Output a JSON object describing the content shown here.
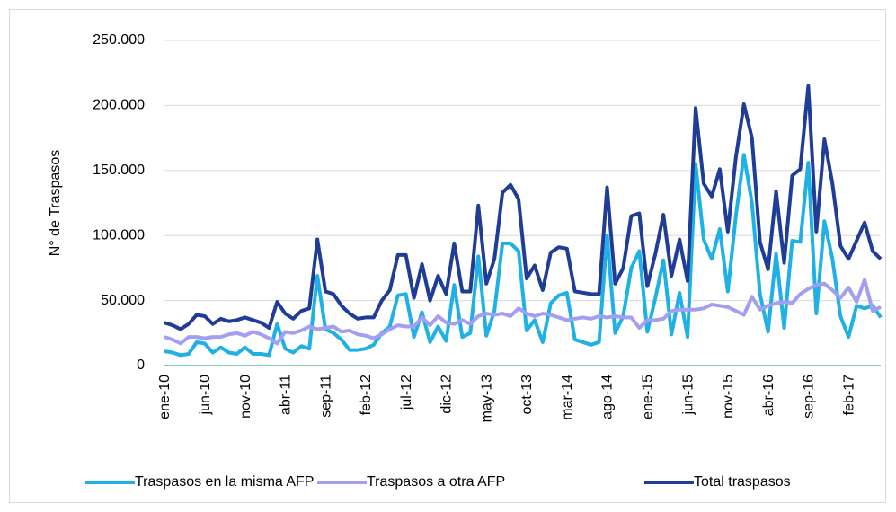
{
  "chart_data": {
    "type": "line",
    "y_label": "N° de Traspasos",
    "categories": [
      "ene-10",
      null,
      null,
      null,
      null,
      "jun-10",
      null,
      null,
      null,
      null,
      "nov-10",
      null,
      null,
      null,
      null,
      "abr-11",
      null,
      null,
      null,
      null,
      "sep-11",
      null,
      null,
      null,
      null,
      "feb-12",
      null,
      null,
      null,
      null,
      "jul-12",
      null,
      null,
      null,
      null,
      "dic-12",
      null,
      null,
      null,
      null,
      "may-13",
      null,
      null,
      null,
      null,
      "oct-13",
      null,
      null,
      null,
      null,
      "mar-14",
      null,
      null,
      null,
      null,
      "ago-14",
      null,
      null,
      null,
      null,
      "ene-15",
      null,
      null,
      null,
      null,
      "jun-15",
      null,
      null,
      null,
      null,
      "nov-15",
      null,
      null,
      null,
      null,
      "abr-16",
      null,
      null,
      null,
      null,
      "sep-16",
      null,
      null,
      null,
      null,
      "feb-17",
      null,
      null,
      null,
      null
    ],
    "series": [
      {
        "name": "Traspasos en la misma AFP",
        "color": "#1fb0e6",
        "values": [
          11000,
          10000,
          8000,
          9000,
          18000,
          17000,
          10000,
          14000,
          10000,
          9000,
          14000,
          9000,
          9000,
          8000,
          32000,
          13000,
          10000,
          15000,
          13000,
          69000,
          28000,
          25000,
          20000,
          12000,
          12000,
          13000,
          16000,
          25000,
          30000,
          54000,
          55000,
          22000,
          41000,
          18000,
          30000,
          19000,
          62000,
          22000,
          25000,
          84000,
          23000,
          42000,
          94000,
          94000,
          88000,
          27000,
          35000,
          18000,
          48000,
          54000,
          56000,
          20000,
          18000,
          16000,
          18000,
          100000,
          25000,
          38000,
          75000,
          88000,
          26000,
          52000,
          81000,
          24000,
          56000,
          22000,
          155000,
          97000,
          82000,
          105000,
          57000,
          115000,
          162000,
          125000,
          55000,
          26000,
          86000,
          29000,
          96000,
          95000,
          156000,
          40000,
          111000,
          82000,
          38000,
          22000,
          46000,
          44000,
          46000,
          37000
        ]
      },
      {
        "name": "Traspasos a otra AFP",
        "color": "#a49ef2",
        "values": [
          22000,
          20000,
          17000,
          22000,
          22000,
          21000,
          22000,
          22000,
          24000,
          25000,
          23000,
          26000,
          24000,
          21000,
          17000,
          26000,
          25000,
          27000,
          30000,
          28000,
          29000,
          30000,
          26000,
          27000,
          24000,
          23000,
          21000,
          24000,
          28000,
          31000,
          30000,
          30000,
          37000,
          31000,
          38000,
          33000,
          32000,
          35000,
          32000,
          38000,
          40000,
          39000,
          40000,
          38000,
          44000,
          40000,
          38000,
          40000,
          39000,
          37000,
          35000,
          36000,
          37000,
          36000,
          38000,
          37000,
          38000,
          37000,
          37000,
          29000,
          35000,
          35000,
          36000,
          42000,
          43000,
          43000,
          43000,
          44000,
          47000,
          46000,
          45000,
          42000,
          39000,
          53000,
          43000,
          46000,
          48000,
          49000,
          48000,
          55000,
          59000,
          62000,
          63000,
          58000,
          52000,
          60000,
          49000,
          66000,
          42000,
          45000
        ]
      },
      {
        "name": "Total traspasos",
        "color": "#1f3c96",
        "values": [
          33000,
          31000,
          28000,
          32000,
          39000,
          38000,
          32000,
          36000,
          34000,
          35000,
          37000,
          35000,
          33000,
          29000,
          49000,
          40000,
          36000,
          42000,
          44000,
          97000,
          57000,
          55000,
          46000,
          40000,
          36000,
          37000,
          37000,
          50000,
          58000,
          85000,
          85000,
          52000,
          78000,
          50000,
          69000,
          55000,
          94000,
          57000,
          57000,
          123000,
          63000,
          82000,
          133000,
          139000,
          128000,
          67000,
          77000,
          58000,
          87000,
          91000,
          90000,
          57000,
          56000,
          55000,
          55000,
          137000,
          63000,
          75000,
          115000,
          117000,
          61000,
          86000,
          116000,
          69000,
          97000,
          65000,
          198000,
          140000,
          130000,
          151000,
          103000,
          160000,
          201000,
          175000,
          95000,
          74000,
          134000,
          79000,
          146000,
          151000,
          215000,
          103000,
          174000,
          140000,
          92000,
          82000,
          96000,
          110000,
          88000,
          82000
        ]
      }
    ],
    "ylim": [
      0,
      250000
    ],
    "yticks": [
      0,
      {
        "value": 50000,
        "label": "50.000"
      },
      {
        "value": 100000,
        "label": "100.000"
      },
      {
        "value": 150000,
        "label": "150.000"
      },
      {
        "value": 200000,
        "label": "200.000"
      },
      {
        "value": 250000,
        "label": "250.000"
      }
    ],
    "grid": true,
    "axis_color": "#5bb5a8",
    "legend": "bottom"
  }
}
